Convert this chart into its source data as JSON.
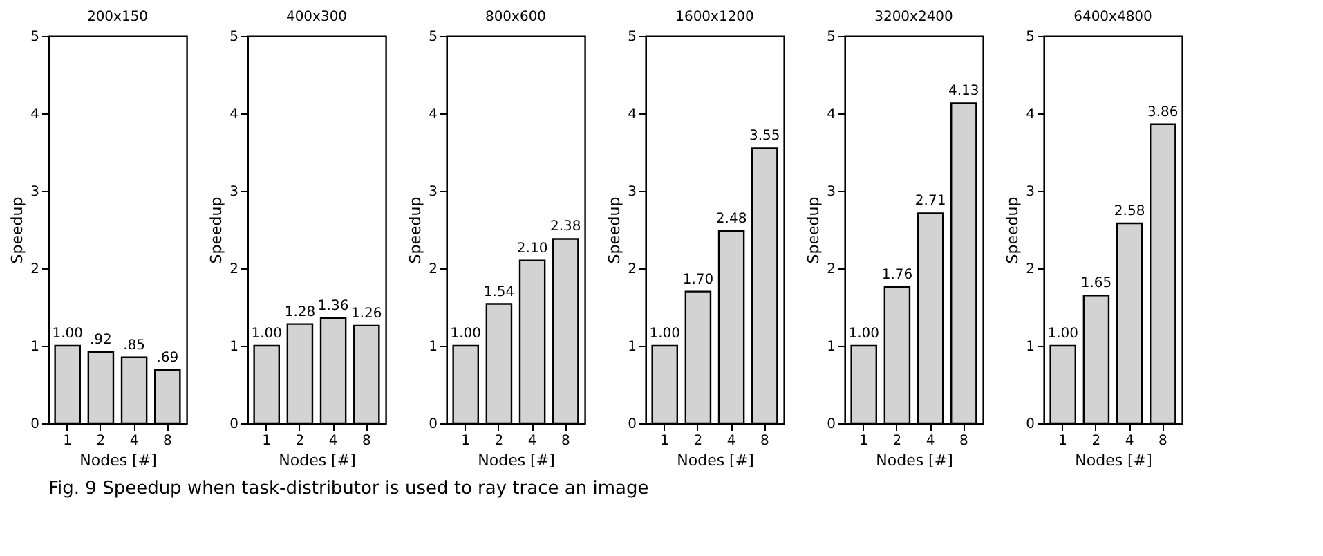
{
  "chart_data": [
    {
      "type": "bar",
      "title": "200x150",
      "xlabel": "Nodes [#]",
      "ylabel": "Speedup",
      "categories": [
        "1",
        "2",
        "4",
        "8"
      ],
      "values": [
        1.0,
        0.92,
        0.85,
        0.69
      ],
      "value_labels": [
        "1.00",
        ".92",
        ".85",
        ".69"
      ],
      "colors": [
        "#d3d3d3",
        "#d3d3d3",
        "#d3d3d3",
        "#d3d3d3"
      ],
      "ylim": [
        0,
        5
      ],
      "yticks": [
        0,
        1,
        2,
        3,
        4,
        5
      ],
      "grid": false,
      "annotations": [
        "Fig. 9  Speedup when task-distributor is used to ray trace an image"
      ]
    },
    {
      "type": "bar",
      "title": "400x300",
      "xlabel": "Nodes [#]",
      "ylabel": "Speedup",
      "categories": [
        "1",
        "2",
        "4",
        "8"
      ],
      "values": [
        1.0,
        1.28,
        1.36,
        1.26
      ],
      "value_labels": [
        "1.00",
        "1.28",
        "1.36",
        "1.26"
      ],
      "colors": [
        "#d3d3d3",
        "#d3d3d3",
        "#d3d3d3",
        "#d3d3d3"
      ],
      "ylim": [
        0,
        5
      ],
      "yticks": [
        0,
        1,
        2,
        3,
        4,
        5
      ],
      "grid": false
    },
    {
      "type": "bar",
      "title": "800x600",
      "xlabel": "Nodes [#]",
      "ylabel": "Speedup",
      "categories": [
        "1",
        "2",
        "4",
        "8"
      ],
      "values": [
        1.0,
        1.54,
        2.1,
        2.38
      ],
      "value_labels": [
        "1.00",
        "1.54",
        "2.10",
        "2.38"
      ],
      "colors": [
        "#d3d3d3",
        "#d3d3d3",
        "#d3d3d3",
        "#d3d3d3"
      ],
      "ylim": [
        0,
        5
      ],
      "yticks": [
        0,
        1,
        2,
        3,
        4,
        5
      ],
      "grid": false
    },
    {
      "type": "bar",
      "title": "1600x1200",
      "xlabel": "Nodes [#]",
      "ylabel": "Speedup",
      "categories": [
        "1",
        "2",
        "4",
        "8"
      ],
      "values": [
        1.0,
        1.7,
        2.48,
        3.55
      ],
      "value_labels": [
        "1.00",
        "1.70",
        "2.48",
        "3.55"
      ],
      "colors": [
        "#d3d3d3",
        "#d3d3d3",
        "#d3d3d3",
        "#d3d3d3"
      ],
      "ylim": [
        0,
        5
      ],
      "yticks": [
        0,
        1,
        2,
        3,
        4,
        5
      ],
      "grid": false
    },
    {
      "type": "bar",
      "title": "3200x2400",
      "xlabel": "Nodes [#]",
      "ylabel": "Speedup",
      "categories": [
        "1",
        "2",
        "4",
        "8"
      ],
      "values": [
        1.0,
        1.76,
        2.71,
        4.13
      ],
      "value_labels": [
        "1.00",
        "1.76",
        "2.71",
        "4.13"
      ],
      "colors": [
        "#d3d3d3",
        "#d3d3d3",
        "#d3d3d3",
        "#d3d3d3"
      ],
      "ylim": [
        0,
        5
      ],
      "yticks": [
        0,
        1,
        2,
        3,
        4,
        5
      ],
      "grid": false
    },
    {
      "type": "bar",
      "title": "6400x4800",
      "xlabel": "Nodes [#]",
      "ylabel": "Speedup",
      "categories": [
        "1",
        "2",
        "4",
        "8"
      ],
      "values": [
        1.0,
        1.65,
        2.58,
        3.86
      ],
      "value_labels": [
        "1.00",
        "1.65",
        "2.58",
        "3.86"
      ],
      "colors": [
        "#d3d3d3",
        "#d3d3d3",
        "#d3d3d3",
        "#d3d3d3"
      ],
      "ylim": [
        0,
        5
      ],
      "yticks": [
        0,
        1,
        2,
        3,
        4,
        5
      ],
      "grid": false
    }
  ]
}
